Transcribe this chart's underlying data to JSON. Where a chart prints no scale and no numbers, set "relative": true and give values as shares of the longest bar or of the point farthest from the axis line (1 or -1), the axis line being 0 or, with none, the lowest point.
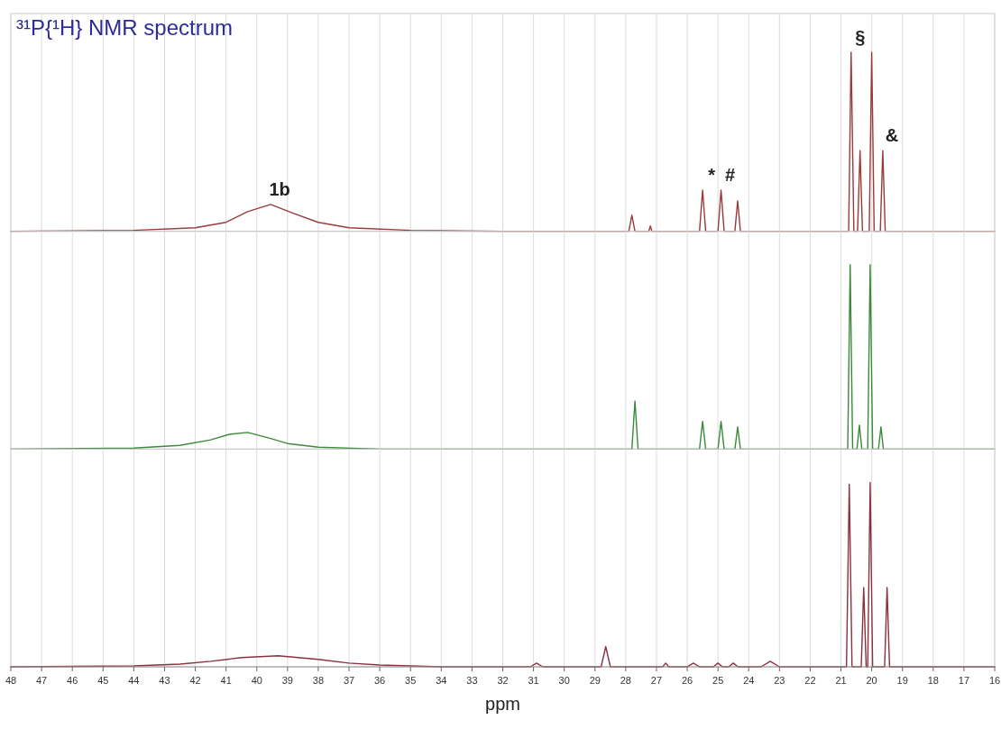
{
  "chart_data": [
    {
      "type": "line",
      "title": "³¹P{¹H} NMR spectrum",
      "relative": true,
      "grid": "x",
      "tick_labels": false,
      "xlim": [
        48,
        16
      ],
      "xticks": [
        48,
        47,
        46,
        45,
        44,
        43,
        42,
        41,
        40,
        39,
        38,
        37,
        36,
        35,
        34,
        33,
        32,
        31,
        30,
        29,
        28,
        27,
        26,
        25,
        24,
        23,
        22,
        21,
        20,
        19,
        18,
        17,
        16
      ],
      "annotations": [
        {
          "text": "1b",
          "x": 39.55,
          "y": 0.15
        },
        {
          "text": "*",
          "x": 25.5,
          "y": 0.23
        },
        {
          "text": "#",
          "x": 24.9,
          "y": 0.23
        },
        {
          "text": "§",
          "x": 20.67,
          "y": 1
        },
        {
          "text": "&",
          "x": 19.64,
          "y": 0.45
        }
      ],
      "series": [
        {
          "color": "#9b3a3a",
          "x": [
            48,
            44,
            42,
            41,
            40.3,
            39.55,
            38.8,
            38,
            37,
            35,
            32,
            28,
            27.9,
            27.8,
            27.7,
            27.25,
            27.2,
            27.15,
            25.6,
            25.5,
            25.4,
            25.0,
            24.9,
            24.8,
            24.45,
            24.36,
            24.27,
            21.0,
            20.75,
            20.67,
            20.58,
            20.46,
            20.38,
            20.3,
            20.08,
            20.0,
            19.92,
            19.72,
            19.64,
            19.56,
            16
          ],
          "values": [
            0,
            0.005,
            0.02,
            0.05,
            0.11,
            0.15,
            0.1,
            0.05,
            0.02,
            0.005,
            0,
            0,
            0,
            0.09,
            0,
            0,
            0.03,
            0,
            0,
            0.23,
            0,
            0,
            0.23,
            0,
            0,
            0.17,
            0,
            0,
            0,
            1,
            0,
            0,
            0.45,
            0,
            0,
            1,
            0,
            0,
            0.45,
            0,
            0
          ]
        }
      ]
    },
    {
      "type": "line",
      "relative": true,
      "grid": "x",
      "tick_labels": false,
      "xlim": [
        48,
        16
      ],
      "xticks": [
        48,
        47,
        46,
        45,
        44,
        43,
        42,
        41,
        40,
        39,
        38,
        37,
        36,
        35,
        34,
        33,
        32,
        31,
        30,
        29,
        28,
        27,
        26,
        25,
        24,
        23,
        22,
        21,
        20,
        19,
        18,
        17,
        16
      ],
      "series": [
        {
          "color": "#3a8a3a",
          "x": [
            48,
            44,
            42.5,
            41.5,
            40.9,
            40.3,
            39.6,
            39,
            38,
            36,
            32,
            27.8,
            27.7,
            27.6,
            25.6,
            25.5,
            25.4,
            25.0,
            24.9,
            24.8,
            24.45,
            24.36,
            24.27,
            21.0,
            20.78,
            20.7,
            20.62,
            20.48,
            20.4,
            20.32,
            20.13,
            20.05,
            19.97,
            19.78,
            19.7,
            19.62,
            16
          ],
          "values": [
            0,
            0.005,
            0.02,
            0.05,
            0.08,
            0.09,
            0.06,
            0.03,
            0.01,
            0,
            0,
            0,
            0.26,
            0,
            0,
            0.15,
            0,
            0,
            0.15,
            0,
            0,
            0.12,
            0,
            0,
            0,
            1,
            0,
            0,
            0.13,
            0,
            0,
            1,
            0,
            0,
            0.12,
            0,
            0
          ]
        }
      ]
    },
    {
      "type": "line",
      "relative": true,
      "grid": "x",
      "tick_labels": "x",
      "xlim": [
        48,
        16
      ],
      "xticks": [
        48,
        47,
        46,
        45,
        44,
        43,
        42,
        41,
        40,
        39,
        38,
        37,
        36,
        35,
        34,
        33,
        32,
        31,
        30,
        29,
        28,
        27,
        26,
        25,
        24,
        23,
        22,
        21,
        20,
        19,
        18,
        17,
        16
      ],
      "xlabel": "ppm",
      "series": [
        {
          "color": "#8b3040",
          "x": [
            48,
            44,
            42.5,
            41.5,
            40.5,
            39.3,
            38,
            37,
            36,
            34,
            31.1,
            30.9,
            30.7,
            28.8,
            28.65,
            28.5,
            26.8,
            26.7,
            26.6,
            26.0,
            25.8,
            25.6,
            25.15,
            25.0,
            24.85,
            24.65,
            24.5,
            24.35,
            23.6,
            23.3,
            23.0,
            21.0,
            20.82,
            20.73,
            20.64,
            20.34,
            20.26,
            20.18,
            20.13,
            20.05,
            19.97,
            19.58,
            19.5,
            19.42,
            16
          ],
          "values": [
            0,
            0.005,
            0.015,
            0.03,
            0.05,
            0.06,
            0.04,
            0.02,
            0.01,
            0,
            0,
            0.02,
            0,
            0,
            0.11,
            0,
            0,
            0.02,
            0,
            0,
            0.02,
            0,
            0,
            0.02,
            0,
            0,
            0.02,
            0,
            0,
            0.03,
            0,
            0,
            0,
            0.99,
            0,
            0,
            0.43,
            0,
            0,
            1,
            0,
            0,
            0.43,
            0,
            0
          ]
        }
      ]
    }
  ]
}
